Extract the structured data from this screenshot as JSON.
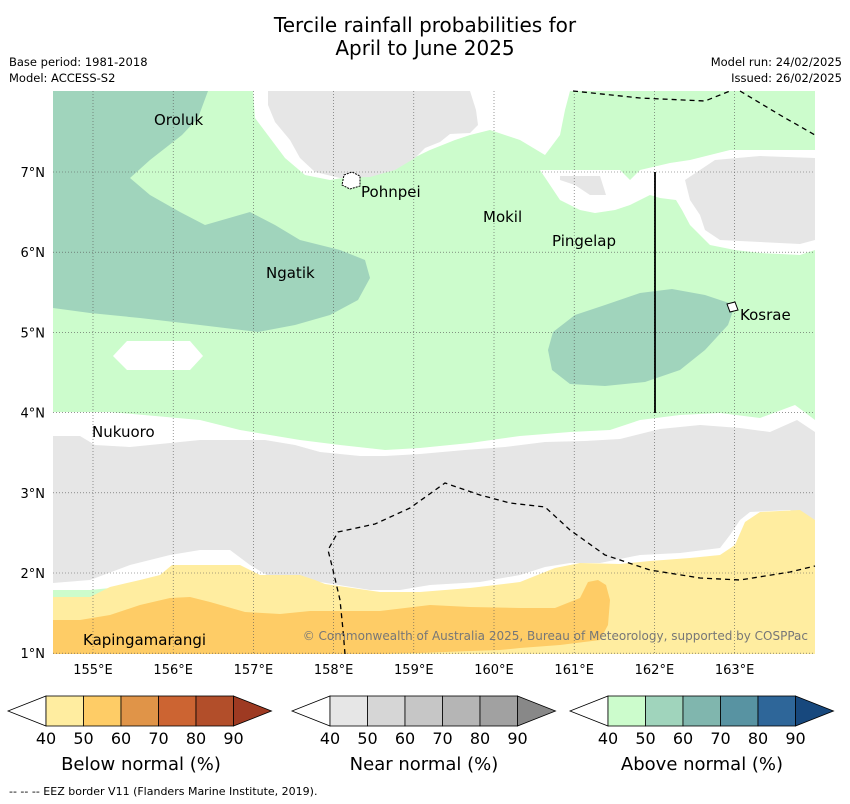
{
  "title_line1": "Tercile rainfall probabilities for",
  "title_line2": "April to June 2025",
  "base_period": "Base period: 1981-2018",
  "model": "Model: ACCESS-S2",
  "model_run": "Model run: 24/02/2025",
  "issued": "Issued: 26/02/2025",
  "copyright": "© Commonwealth of Australia 2025, Bureau of Meteorology, supported by COSPPac",
  "footer": "--  --  -- EEZ border V11 (Flanders Marine Institute, 2019).",
  "axis": {
    "x_ticks": [
      "155°E",
      "156°E",
      "157°E",
      "158°E",
      "159°E",
      "160°E",
      "161°E",
      "162°E",
      "163°E"
    ],
    "y_ticks": [
      "7°N",
      "6°N",
      "5°N",
      "4°N",
      "3°N",
      "2°N",
      "1°N"
    ]
  },
  "places": {
    "oroluk": "Oroluk",
    "pohnpei": "Pohnpei",
    "mokil": "Mokil",
    "pingelap": "Pingelap",
    "ngatik": "Ngatik",
    "kosrae": "Kosrae",
    "nukuoro": "Nukuoro",
    "kapingamarangi": "Kapingamarangi"
  },
  "colorbars": {
    "ticks": [
      "40",
      "50",
      "60",
      "70",
      "80",
      "90"
    ],
    "below": {
      "label": "Below normal (%)",
      "colors": [
        "#ffffff",
        "#ffeda0",
        "#fecc66",
        "#e09448",
        "#cc6432",
        "#b24e2a",
        "#9e3a22"
      ]
    },
    "near": {
      "label": "Near normal (%)",
      "colors": [
        "#ffffff",
        "#e6e6e6",
        "#d6d6d6",
        "#c6c6c6",
        "#b5b5b5",
        "#a1a1a1",
        "#888888"
      ]
    },
    "above": {
      "label": "Above normal (%)",
      "colors": [
        "#ffffff",
        "#ccfccc",
        "#a0d4bc",
        "#80b6ae",
        "#5893a2",
        "#2e6699",
        "#17487d"
      ]
    }
  }
}
